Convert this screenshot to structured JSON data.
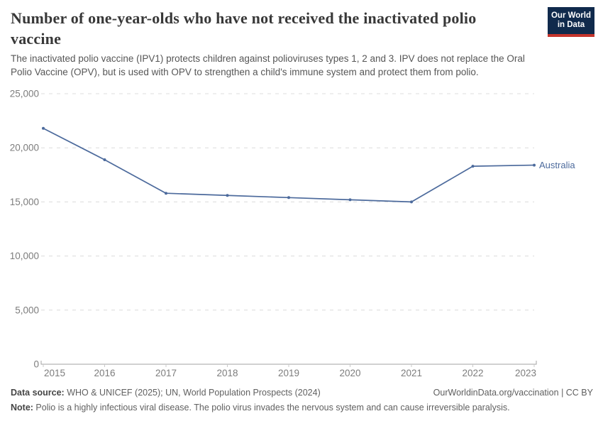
{
  "header": {
    "title_lines": [
      "Number of one-year-olds who have not received the inactivated polio",
      "vaccine"
    ],
    "subtitle_lines": [
      "The inactivated polio vaccine (IPV1) protects children against polioviruses types 1, 2 and 3. IPV does not replace the Oral",
      "Polio Vaccine (OPV), but is used with OPV to strengthen a child's immune system and protect them from polio."
    ],
    "logo": {
      "line1": "Our World",
      "line2": "in Data",
      "bg_color": "#102a4c",
      "accent_color": "#c5352c"
    }
  },
  "chart_data": {
    "type": "line",
    "title": "Number of one-year-olds who have not received the inactivated polio vaccine",
    "xlabel": "",
    "ylabel": "",
    "x": [
      2015,
      2016,
      2017,
      2018,
      2019,
      2020,
      2021,
      2022,
      2023
    ],
    "series": [
      {
        "name": "Australia",
        "color": "#4c6a9c",
        "values": [
          21800,
          18900,
          15800,
          15600,
          15400,
          15200,
          15000,
          18300,
          18400
        ]
      }
    ],
    "ylim": [
      0,
      25000
    ],
    "yticks": [
      {
        "value": 0,
        "label": "0"
      },
      {
        "value": 5000,
        "label": "5,000"
      },
      {
        "value": 10000,
        "label": "10,000"
      },
      {
        "value": 15000,
        "label": "15,000"
      },
      {
        "value": 20000,
        "label": "20,000"
      },
      {
        "value": 25000,
        "label": "25,000"
      }
    ],
    "grid": "horizontal-dashed",
    "legend_position": "end-of-line-label",
    "tick_color": "#7d7d7d",
    "grid_color": "#dcdcdc",
    "axis_color": "#a3a3a3"
  },
  "footer": {
    "datasource_label": "Data source:",
    "datasource_text": " WHO & UNICEF (2025); UN, World Population Prospects (2024)",
    "link": "OurWorldinData.org/vaccination | CC BY",
    "note_label": "Note:",
    "note_text": " Polio is a highly infectious viral disease. The polio virus invades the nervous system and can cause irreversible paralysis."
  }
}
